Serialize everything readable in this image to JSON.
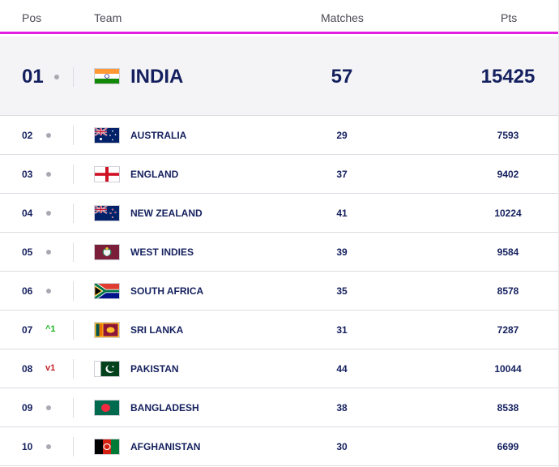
{
  "header": {
    "pos": "Pos",
    "team": "Team",
    "matches": "Matches",
    "pts": "Pts"
  },
  "rows": [
    {
      "pos": "01",
      "team": "INDIA",
      "matches": "57",
      "pts": "15425",
      "movement": "none",
      "flag": "india-flag-icon"
    },
    {
      "pos": "02",
      "team": "AUSTRALIA",
      "matches": "29",
      "pts": "7593",
      "movement": "none",
      "flag": "australia-flag-icon"
    },
    {
      "pos": "03",
      "team": "ENGLAND",
      "matches": "37",
      "pts": "9402",
      "movement": "none",
      "flag": "england-flag-icon"
    },
    {
      "pos": "04",
      "team": "NEW ZEALAND",
      "matches": "41",
      "pts": "10224",
      "movement": "none",
      "flag": "new-zealand-flag-icon"
    },
    {
      "pos": "05",
      "team": "WEST INDIES",
      "matches": "39",
      "pts": "9584",
      "movement": "none",
      "flag": "west-indies-flag-icon"
    },
    {
      "pos": "06",
      "team": "SOUTH AFRICA",
      "matches": "35",
      "pts": "8578",
      "movement": "none",
      "flag": "south-africa-flag-icon"
    },
    {
      "pos": "07",
      "team": "SRI LANKA",
      "matches": "31",
      "pts": "7287",
      "movement": "up",
      "movement_text": "^1",
      "flag": "sri-lanka-flag-icon"
    },
    {
      "pos": "08",
      "team": "PAKISTAN",
      "matches": "44",
      "pts": "10044",
      "movement": "down",
      "movement_text": "v1",
      "flag": "pakistan-flag-icon"
    },
    {
      "pos": "09",
      "team": "BANGLADESH",
      "matches": "38",
      "pts": "8538",
      "movement": "none",
      "flag": "bangladesh-flag-icon"
    },
    {
      "pos": "10",
      "team": "AFGHANISTAN",
      "matches": "30",
      "pts": "6699",
      "movement": "none",
      "flag": "afghanistan-flag-icon"
    }
  ],
  "colors": {
    "accent": "#e31ee0",
    "text": "#14205e",
    "up": "#1db41d",
    "down": "#c4222c"
  }
}
